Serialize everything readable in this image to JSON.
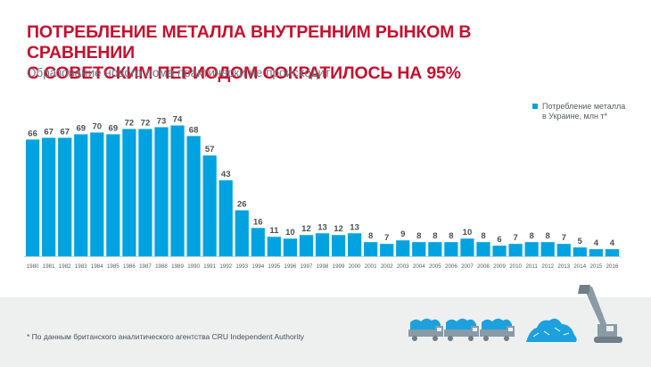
{
  "header": {
    "title_line1": "ПОТРЕБЛЕНИЕ МЕТАЛЛА ВНУТРЕННИМ РЫНКОМ В СРАВНЕНИИ",
    "title_line2": "С СОВЕТСКИМ ПЕРИОДОМ СОКРАТИЛОСЬ НА 95%",
    "subtitle": "Образование нового лома практически не происходит"
  },
  "legend": {
    "line1": "Потребление металла",
    "line2": "в Украине, млн т*"
  },
  "footnote": "* По данным британского аналитического агентства CRU Independent Authority",
  "colors": {
    "bar": "#00a3e0",
    "title": "#c8102e",
    "label": "#4a5056",
    "scrap": "#1da1de",
    "machine": "#8a9aa6"
  },
  "icons": [
    "truck-icon",
    "scrap-pile-icon",
    "excavator-icon"
  ],
  "chart_data": {
    "type": "bar",
    "title": "ПОТРЕБЛЕНИЕ МЕТАЛЛА ВНУТРЕННИМ РЫНКОМ В СРАВНЕНИИ С СОВЕТСКИМ ПЕРИОДОМ СОКРАТИЛОСЬ НА 95%",
    "subtitle": "Образование нового лома практически не происходит",
    "categories": [
      "1980",
      "1981",
      "1982",
      "1983",
      "1984",
      "1985",
      "1986",
      "1987",
      "1988",
      "1989",
      "1990",
      "1991",
      "1992",
      "1993",
      "1994",
      "1995",
      "1996",
      "1997",
      "1998",
      "1999",
      "2000",
      "2001",
      "2002",
      "2003",
      "2004",
      "2005",
      "2006",
      "2007",
      "2008",
      "2009",
      "2010",
      "2011",
      "2012",
      "2013",
      "2014",
      "2015",
      "2016"
    ],
    "series": [
      {
        "name": "Потребление металла в Украине, млн т*",
        "values": [
          66,
          67,
          67,
          69,
          70,
          69,
          72,
          72,
          73,
          74,
          68,
          57,
          43,
          26,
          16,
          11,
          10,
          12,
          13,
          12,
          13,
          8,
          7,
          9,
          8,
          8,
          8,
          10,
          8,
          6,
          7,
          8,
          8,
          7,
          5,
          4,
          4
        ]
      }
    ],
    "xlabel": "",
    "ylabel": "",
    "ylim": [
      0,
      80
    ],
    "grid": false,
    "legend_position": "right"
  }
}
